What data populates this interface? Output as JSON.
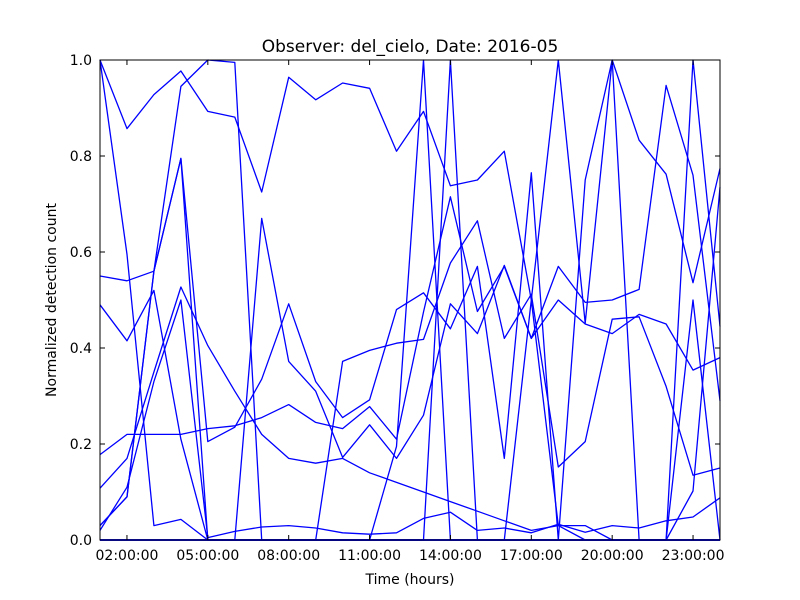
{
  "chart_data": {
    "type": "line",
    "title": "Observer: del_cielo, Date: 2016-05",
    "xlabel": "Time (hours)",
    "ylabel": "Normalized detection count",
    "xlim": [
      1.0,
      24.0
    ],
    "ylim": [
      0.0,
      1.0
    ],
    "x_ticks": [
      2,
      5,
      8,
      11,
      14,
      17,
      20,
      23
    ],
    "x_tick_labels": [
      "02:00:00",
      "05:00:00",
      "08:00:00",
      "11:00:00",
      "14:00:00",
      "17:00:00",
      "20:00:00",
      "23:00:00"
    ],
    "y_ticks": [
      0.0,
      0.2,
      0.4,
      0.6,
      0.8,
      1.0
    ],
    "y_tick_labels": [
      "0.0",
      "0.2",
      "0.4",
      "0.6",
      "0.8",
      "1.0"
    ],
    "grid": false,
    "line_color": "#0000ff",
    "x": [
      1,
      2,
      3,
      4,
      5,
      6,
      7,
      8,
      9,
      10,
      11,
      12,
      13,
      14,
      15,
      16,
      17,
      18,
      19,
      20,
      21,
      22,
      23,
      24
    ],
    "series": [
      {
        "values": [
          1.0,
          0.857,
          0.928,
          0.977,
          0.893,
          0.881,
          0.725,
          0.964,
          0.917,
          0.952,
          0.941,
          0.81,
          0.893,
          0.738,
          0.75,
          0.81,
          0.5,
          1.0,
          0.452,
          1.0,
          0.833,
          0.762,
          0.536,
          0.774
        ]
      },
      {
        "values": [
          0.55,
          0.54,
          0.56,
          0.945,
          1.0,
          0.995,
          0.0,
          0.0,
          0.0,
          0.0,
          0.0,
          0.0,
          0.0,
          1.0,
          0.0,
          0.0,
          0.0,
          0.0,
          0.0,
          0.0,
          0.0,
          0.0,
          0.0,
          0.0
        ]
      },
      {
        "values": [
          0.49,
          0.415,
          0.52,
          0.21,
          0.0,
          0.0,
          0.0,
          0.0,
          0.0,
          0.0,
          0.0,
          0.0,
          0.0,
          0.0,
          0.0,
          0.0,
          0.0,
          0.0,
          0.0,
          0.0,
          0.0,
          0.0,
          0.0,
          0.0
        ]
      },
      {
        "values": [
          1.0,
          0.595,
          0.03,
          0.043,
          0.0,
          0.0,
          0.0,
          0.0,
          0.0,
          0.0,
          0.0,
          0.0,
          0.0,
          0.0,
          0.0,
          0.0,
          0.0,
          0.0,
          0.0,
          0.0,
          0.0,
          0.0,
          0.0,
          0.0
        ]
      },
      {
        "values": [
          0.0,
          0.0,
          0.0,
          0.0,
          0.0,
          0.0,
          0.0,
          0.0,
          0.0,
          0.0,
          0.0,
          0.0,
          0.0,
          0.0,
          0.0,
          0.0,
          0.0,
          0.0,
          0.0,
          0.0,
          0.0,
          0.0,
          0.0,
          0.0
        ]
      },
      {
        "values": [
          0.178,
          0.22,
          0.22,
          0.22,
          0.232,
          0.238,
          0.255,
          0.282,
          0.245,
          0.232,
          0.278,
          0.21,
          0.475,
          0.715,
          0.476,
          0.57,
          0.42,
          0.5,
          0.45,
          0.43,
          0.47,
          0.45,
          0.354,
          0.38
        ]
      },
      {
        "values": [
          0.0,
          0.0,
          0.0,
          0.0,
          0.0,
          0.0,
          0.0,
          0.0,
          0.0,
          0.0,
          0.0,
          0.0,
          0.0,
          0.0,
          0.0,
          0.0,
          0.0,
          0.0,
          0.0,
          0.0,
          0.0,
          0.0,
          0.0,
          0.0
        ]
      },
      {
        "values": [
          0.108,
          0.17,
          0.35,
          0.527,
          0.405,
          0.31,
          0.22,
          0.17,
          0.16,
          0.17,
          0.14,
          0.12,
          0.1,
          0.08,
          0.06,
          0.04,
          0.02,
          0.03,
          0.0,
          0.0,
          0.0,
          0.0,
          0.0,
          0.0
        ]
      },
      {
        "values": [
          0.03,
          0.09,
          0.56,
          0.795,
          0.205,
          0.235,
          0.335,
          0.492,
          0.33,
          0.255,
          0.292,
          0.48,
          0.515,
          0.44,
          0.57,
          0.17,
          0.765,
          0.0,
          0.75,
          1.0,
          0.0,
          0.0,
          1.0,
          0.445
        ]
      },
      {
        "values": [
          0.03,
          0.09,
          0.56,
          0.795,
          0.0,
          0.0,
          0.0,
          0.0,
          0.0,
          0.0,
          0.0,
          0.0,
          0.0,
          0.0,
          0.0,
          0.0,
          0.0,
          0.0,
          0.0,
          0.0,
          0.0,
          0.0,
          0.0,
          0.0
        ]
      },
      {
        "values": [
          0.02,
          0.11,
          0.33,
          0.5,
          0.005,
          0.018,
          0.027,
          0.03,
          0.025,
          0.015,
          0.012,
          0.015,
          0.045,
          0.058,
          0.02,
          0.025,
          0.015,
          0.033,
          0.016,
          0.03,
          0.025,
          0.04,
          0.048,
          0.088
        ]
      },
      {
        "values": [
          0.0,
          0.0,
          0.0,
          0.0,
          0.0,
          0.0,
          0.0,
          0.0,
          0.0,
          0.0,
          0.0,
          0.0,
          0.0,
          0.0,
          0.0,
          0.0,
          0.0,
          0.0,
          0.0,
          0.0,
          0.0,
          0.0,
          0.0,
          0.0
        ]
      },
      {
        "values": [
          0.0,
          0.0,
          0.0,
          0.0,
          0.0,
          0.0,
          0.67,
          0.372,
          0.31,
          0.172,
          0.24,
          0.17,
          0.26,
          0.492,
          0.43,
          0.572,
          0.42,
          0.57,
          0.495,
          0.5,
          0.522,
          0.947,
          0.76,
          0.29
        ]
      },
      {
        "values": [
          0.0,
          0.0,
          0.0,
          0.0,
          0.0,
          0.0,
          0.0,
          0.0,
          0.0,
          0.372,
          0.395,
          0.41,
          0.418,
          0.577,
          0.665,
          0.42,
          0.512,
          0.152,
          0.205,
          0.46,
          0.465,
          0.32,
          0.135,
          0.15
        ]
      },
      {
        "values": [
          0.0,
          0.0,
          0.0,
          0.0,
          0.0,
          0.0,
          0.0,
          0.0,
          0.0,
          0.0,
          0.0,
          0.195,
          1.0,
          0.0,
          0.0,
          0.0,
          0.0,
          0.0,
          0.0,
          0.0,
          0.0,
          0.0,
          0.0,
          0.0
        ]
      },
      {
        "values": [
          0.0,
          0.0,
          0.0,
          0.0,
          0.0,
          0.0,
          0.0,
          0.0,
          0.0,
          0.0,
          0.0,
          0.0,
          0.0,
          0.0,
          0.0,
          0.0,
          0.5,
          0.03,
          0.03,
          0.0,
          0.0,
          0.0,
          0.0,
          0.0
        ]
      },
      {
        "values": [
          0.0,
          0.0,
          0.0,
          0.0,
          0.0,
          0.0,
          0.0,
          0.0,
          0.0,
          0.0,
          0.0,
          0.0,
          0.0,
          0.0,
          0.0,
          0.0,
          0.0,
          0.0,
          0.0,
          0.0,
          0.0,
          0.0,
          0.5,
          0.0
        ]
      },
      {
        "values": [
          0.0,
          0.0,
          0.0,
          0.0,
          0.0,
          0.0,
          0.0,
          0.0,
          0.0,
          0.0,
          0.0,
          0.0,
          0.0,
          0.0,
          0.0,
          0.0,
          0.0,
          0.0,
          0.0,
          0.0,
          0.0,
          0.0,
          0.102,
          0.735
        ]
      }
    ]
  }
}
